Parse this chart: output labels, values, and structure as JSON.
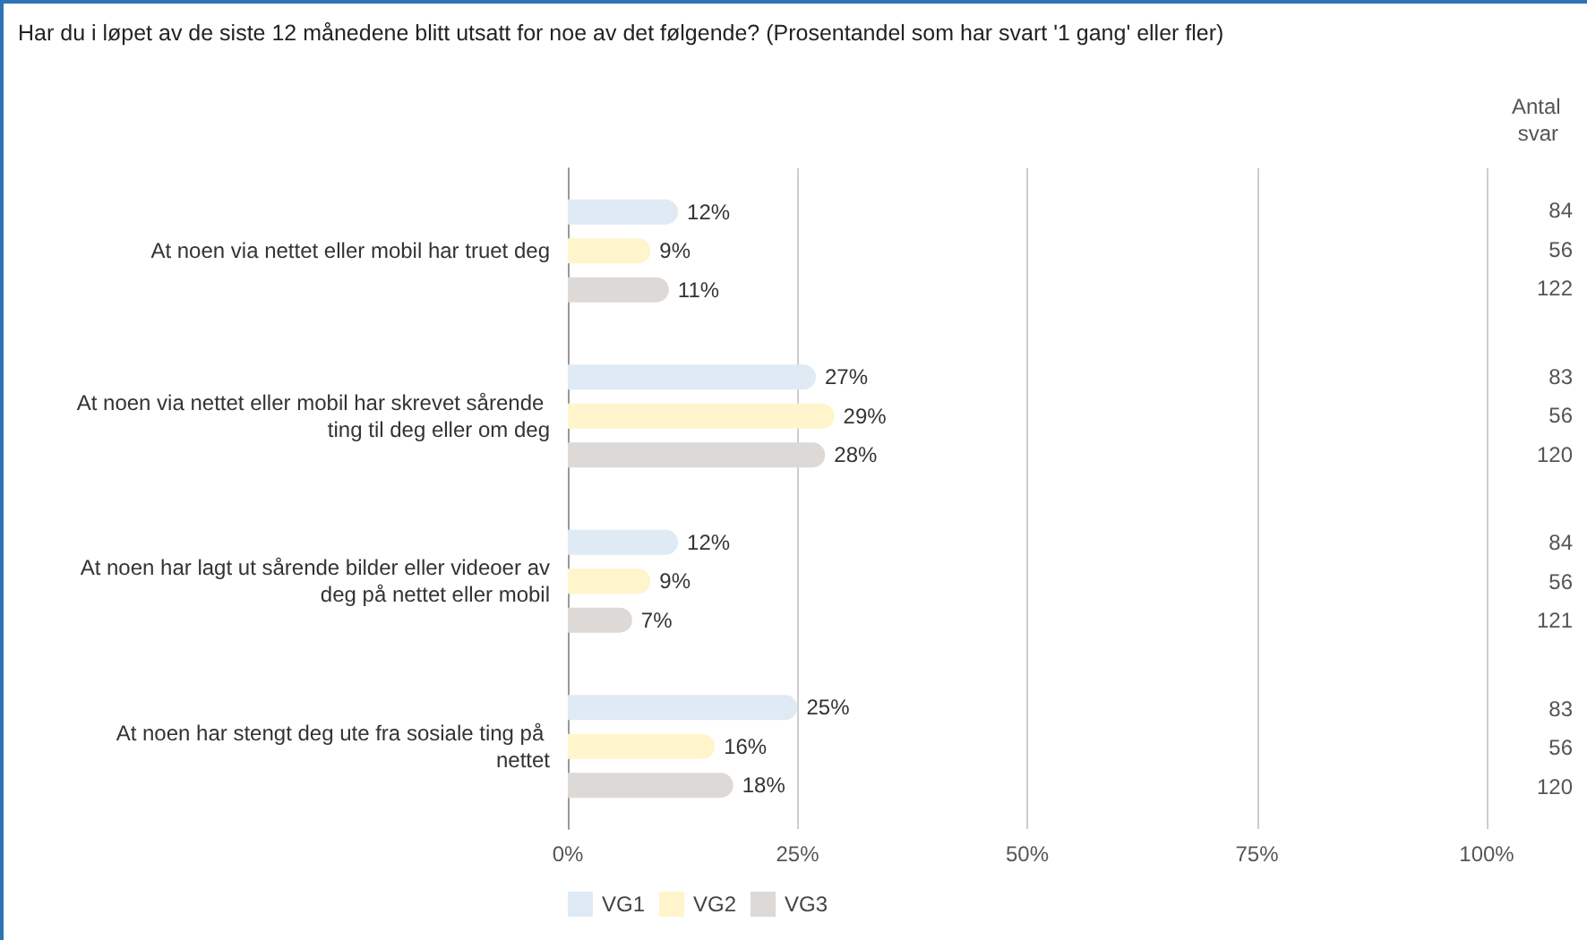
{
  "chart_data": {
    "type": "bar",
    "orientation": "horizontal",
    "title": "Har du i løpet av de siste 12 månedene blitt utsatt for noe av det følgende? (Prosentandel som har svart '1 gang' eller fler)",
    "categories": [
      "At noen via nettet eller mobil har truet deg",
      "At noen via nettet eller mobil har skrevet sårende ting til deg eller om deg",
      "At noen har lagt ut sårende bilder eller videoer av deg på nettet eller mobil",
      "At noen har stengt deg ute fra sosiale ting på nettet"
    ],
    "series": [
      {
        "name": "VG1",
        "color": "#dfeaf5",
        "values": [
          12,
          27,
          12,
          25
        ],
        "value_labels": [
          "12%",
          "27%",
          "12%",
          "25%"
        ]
      },
      {
        "name": "VG2",
        "color": "#fff4cc",
        "values": [
          9,
          29,
          9,
          16
        ],
        "value_labels": [
          "9%",
          "29%",
          "9%",
          "16%"
        ]
      },
      {
        "name": "VG3",
        "color": "#dcd9d6",
        "values": [
          11,
          28,
          7,
          18
        ],
        "value_labels": [
          "11%",
          "28%",
          "7%",
          "18%"
        ]
      }
    ],
    "xlim": [
      0,
      100
    ],
    "xticks": [
      {
        "value": 0,
        "label": "0%"
      },
      {
        "value": 25,
        "label": "25%"
      },
      {
        "value": 50,
        "label": "50%"
      },
      {
        "value": 75,
        "label": "75%"
      },
      {
        "value": 100,
        "label": "100%"
      }
    ],
    "grid": "x",
    "legend": "bottom left",
    "annotations": [
      "Antal svar",
      "84",
      "56",
      "122",
      "83",
      "56",
      "120",
      "84",
      "56",
      "121",
      "83",
      "56",
      "120"
    ]
  }
}
